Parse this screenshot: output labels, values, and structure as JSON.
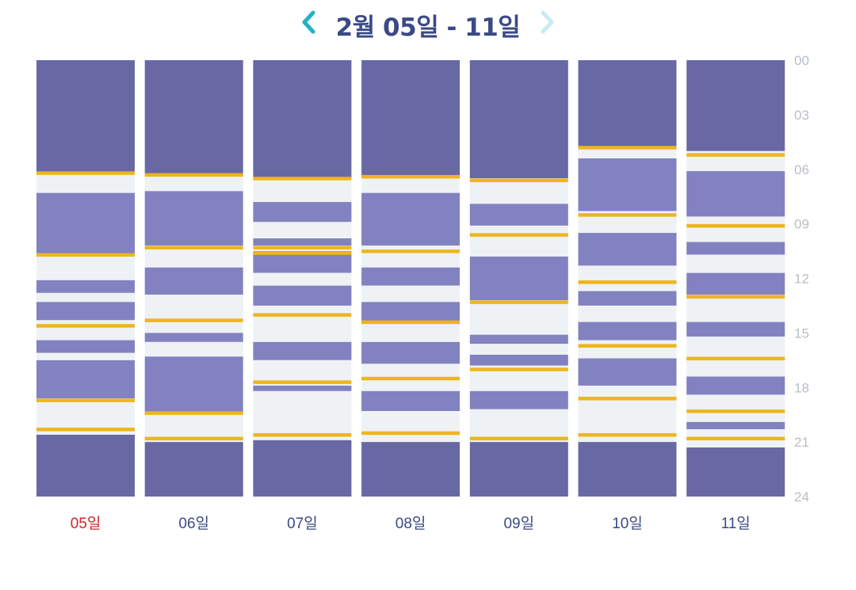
{
  "header": {
    "title": "2월 05일 - 11일",
    "prev_icon": "chevron-left-icon",
    "next_icon": "chevron-right-icon"
  },
  "colors": {
    "deep_sleep": "#6868a5",
    "light_sleep": "#8282c1",
    "awake": "#eef2f5",
    "marker": "#eeb51d",
    "chevron_active": "#23b1c4",
    "chevron_disabled": "#c9ecf1",
    "label_today": "#d0242b",
    "label_default": "#3b4a86",
    "tick": "#b9bec6"
  },
  "chart_data": {
    "type": "timeline",
    "y_ticks": [
      "00",
      "03",
      "06",
      "09",
      "12",
      "15",
      "18",
      "21",
      "24"
    ],
    "ylim": [
      0,
      24
    ],
    "days": [
      {
        "label": "05일",
        "highlight": true,
        "segments": [
          {
            "start": 0,
            "end": 6.2,
            "kind": "deep"
          },
          {
            "start": 6.2,
            "end": 7.3,
            "kind": "awake"
          },
          {
            "start": 7.3,
            "end": 10.7,
            "kind": "light"
          },
          {
            "start": 10.7,
            "end": 12.1,
            "kind": "awake"
          },
          {
            "start": 12.1,
            "end": 12.8,
            "kind": "light"
          },
          {
            "start": 12.8,
            "end": 13.3,
            "kind": "awake"
          },
          {
            "start": 13.3,
            "end": 14.3,
            "kind": "light"
          },
          {
            "start": 14.3,
            "end": 15.4,
            "kind": "awake"
          },
          {
            "start": 15.4,
            "end": 16.1,
            "kind": "light"
          },
          {
            "start": 16.1,
            "end": 16.5,
            "kind": "awake"
          },
          {
            "start": 16.5,
            "end": 18.6,
            "kind": "light"
          },
          {
            "start": 18.6,
            "end": 20.6,
            "kind": "awake"
          },
          {
            "start": 20.6,
            "end": 24,
            "kind": "deep"
          }
        ],
        "markers": [
          6.2,
          10.7,
          14.6,
          18.7,
          20.3
        ]
      },
      {
        "label": "06일",
        "highlight": false,
        "segments": [
          {
            "start": 0,
            "end": 6.3,
            "kind": "deep"
          },
          {
            "start": 6.3,
            "end": 7.2,
            "kind": "awake"
          },
          {
            "start": 7.2,
            "end": 10.2,
            "kind": "light"
          },
          {
            "start": 10.2,
            "end": 11.4,
            "kind": "awake"
          },
          {
            "start": 11.4,
            "end": 12.9,
            "kind": "light"
          },
          {
            "start": 12.9,
            "end": 15.0,
            "kind": "awake"
          },
          {
            "start": 15.0,
            "end": 15.5,
            "kind": "light"
          },
          {
            "start": 15.5,
            "end": 16.3,
            "kind": "awake"
          },
          {
            "start": 16.3,
            "end": 19.4,
            "kind": "light"
          },
          {
            "start": 19.4,
            "end": 21.0,
            "kind": "awake"
          },
          {
            "start": 21.0,
            "end": 24,
            "kind": "deep"
          }
        ],
        "markers": [
          6.3,
          10.3,
          14.3,
          19.4,
          20.8
        ]
      },
      {
        "label": "07일",
        "highlight": false,
        "segments": [
          {
            "start": 0,
            "end": 6.5,
            "kind": "deep"
          },
          {
            "start": 6.5,
            "end": 7.8,
            "kind": "awake"
          },
          {
            "start": 7.8,
            "end": 8.9,
            "kind": "light"
          },
          {
            "start": 8.9,
            "end": 9.8,
            "kind": "awake"
          },
          {
            "start": 9.8,
            "end": 10.2,
            "kind": "light"
          },
          {
            "start": 10.2,
            "end": 10.5,
            "kind": "awake"
          },
          {
            "start": 10.5,
            "end": 11.7,
            "kind": "light"
          },
          {
            "start": 11.7,
            "end": 12.4,
            "kind": "awake"
          },
          {
            "start": 12.4,
            "end": 13.5,
            "kind": "light"
          },
          {
            "start": 13.5,
            "end": 15.5,
            "kind": "awake"
          },
          {
            "start": 15.5,
            "end": 16.5,
            "kind": "light"
          },
          {
            "start": 16.5,
            "end": 17.9,
            "kind": "awake"
          },
          {
            "start": 17.9,
            "end": 18.2,
            "kind": "light"
          },
          {
            "start": 18.2,
            "end": 20.9,
            "kind": "awake"
          },
          {
            "start": 20.9,
            "end": 24,
            "kind": "deep"
          }
        ],
        "markers": [
          6.5,
          10.3,
          10.6,
          14.0,
          17.7,
          20.6
        ]
      },
      {
        "label": "08일",
        "highlight": false,
        "segments": [
          {
            "start": 0,
            "end": 6.4,
            "kind": "deep"
          },
          {
            "start": 6.4,
            "end": 7.3,
            "kind": "awake"
          },
          {
            "start": 7.3,
            "end": 10.2,
            "kind": "light"
          },
          {
            "start": 10.2,
            "end": 11.4,
            "kind": "awake"
          },
          {
            "start": 11.4,
            "end": 12.4,
            "kind": "light"
          },
          {
            "start": 12.4,
            "end": 13.3,
            "kind": "awake"
          },
          {
            "start": 13.3,
            "end": 14.4,
            "kind": "light"
          },
          {
            "start": 14.4,
            "end": 15.5,
            "kind": "awake"
          },
          {
            "start": 15.5,
            "end": 16.7,
            "kind": "light"
          },
          {
            "start": 16.7,
            "end": 18.2,
            "kind": "awake"
          },
          {
            "start": 18.2,
            "end": 19.3,
            "kind": "light"
          },
          {
            "start": 19.3,
            "end": 21.0,
            "kind": "awake"
          },
          {
            "start": 21.0,
            "end": 24,
            "kind": "deep"
          }
        ],
        "markers": [
          6.4,
          10.5,
          14.4,
          17.5,
          20.5
        ]
      },
      {
        "label": "09일",
        "highlight": false,
        "segments": [
          {
            "start": 0,
            "end": 6.5,
            "kind": "deep"
          },
          {
            "start": 6.5,
            "end": 7.9,
            "kind": "awake"
          },
          {
            "start": 7.9,
            "end": 9.1,
            "kind": "light"
          },
          {
            "start": 9.1,
            "end": 10.8,
            "kind": "awake"
          },
          {
            "start": 10.8,
            "end": 13.2,
            "kind": "light"
          },
          {
            "start": 13.2,
            "end": 15.1,
            "kind": "awake"
          },
          {
            "start": 15.1,
            "end": 15.6,
            "kind": "light"
          },
          {
            "start": 15.6,
            "end": 16.2,
            "kind": "awake"
          },
          {
            "start": 16.2,
            "end": 16.8,
            "kind": "light"
          },
          {
            "start": 16.8,
            "end": 18.2,
            "kind": "awake"
          },
          {
            "start": 18.2,
            "end": 19.2,
            "kind": "light"
          },
          {
            "start": 19.2,
            "end": 21.0,
            "kind": "awake"
          },
          {
            "start": 21.0,
            "end": 24,
            "kind": "deep"
          }
        ],
        "markers": [
          6.6,
          9.6,
          13.3,
          17.0,
          20.8
        ]
      },
      {
        "label": "10일",
        "highlight": false,
        "segments": [
          {
            "start": 0,
            "end": 4.9,
            "kind": "deep"
          },
          {
            "start": 4.9,
            "end": 5.4,
            "kind": "awake"
          },
          {
            "start": 5.4,
            "end": 8.3,
            "kind": "light"
          },
          {
            "start": 8.3,
            "end": 9.5,
            "kind": "awake"
          },
          {
            "start": 9.5,
            "end": 11.3,
            "kind": "light"
          },
          {
            "start": 11.3,
            "end": 12.7,
            "kind": "awake"
          },
          {
            "start": 12.7,
            "end": 13.5,
            "kind": "light"
          },
          {
            "start": 13.5,
            "end": 14.4,
            "kind": "awake"
          },
          {
            "start": 14.4,
            "end": 15.4,
            "kind": "light"
          },
          {
            "start": 15.4,
            "end": 16.4,
            "kind": "awake"
          },
          {
            "start": 16.4,
            "end": 17.9,
            "kind": "light"
          },
          {
            "start": 17.9,
            "end": 21.0,
            "kind": "awake"
          },
          {
            "start": 21.0,
            "end": 24,
            "kind": "deep"
          }
        ],
        "markers": [
          4.8,
          8.5,
          12.2,
          15.7,
          18.6,
          20.6
        ]
      },
      {
        "label": "11일",
        "highlight": false,
        "segments": [
          {
            "start": 0,
            "end": 5.0,
            "kind": "deep"
          },
          {
            "start": 5.0,
            "end": 6.1,
            "kind": "awake"
          },
          {
            "start": 6.1,
            "end": 8.6,
            "kind": "light"
          },
          {
            "start": 8.6,
            "end": 10.0,
            "kind": "awake"
          },
          {
            "start": 10.0,
            "end": 10.7,
            "kind": "light"
          },
          {
            "start": 10.7,
            "end": 11.7,
            "kind": "awake"
          },
          {
            "start": 11.7,
            "end": 12.9,
            "kind": "light"
          },
          {
            "start": 12.9,
            "end": 14.4,
            "kind": "awake"
          },
          {
            "start": 14.4,
            "end": 15.2,
            "kind": "light"
          },
          {
            "start": 15.2,
            "end": 17.4,
            "kind": "awake"
          },
          {
            "start": 17.4,
            "end": 18.4,
            "kind": "light"
          },
          {
            "start": 18.4,
            "end": 19.9,
            "kind": "awake"
          },
          {
            "start": 19.9,
            "end": 20.3,
            "kind": "light"
          },
          {
            "start": 20.3,
            "end": 21.3,
            "kind": "awake"
          },
          {
            "start": 21.3,
            "end": 24,
            "kind": "deep"
          }
        ],
        "markers": [
          5.2,
          9.1,
          13.0,
          16.4,
          19.3,
          20.8
        ]
      }
    ]
  }
}
